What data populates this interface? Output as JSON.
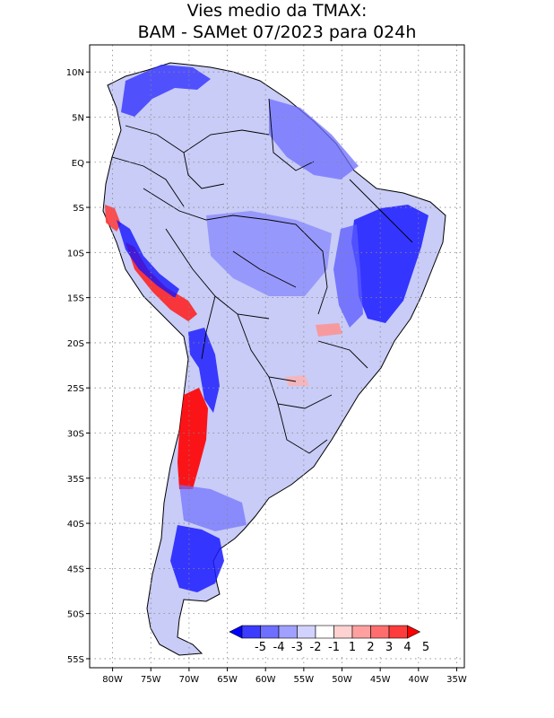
{
  "title": {
    "line1": "Vies medio da TMAX:",
    "line2": "BAM - SAMet 07/2023  para 024h"
  },
  "map": {
    "lon_min": -83,
    "lon_max": -34,
    "lat_min": -56,
    "lat_max": 13,
    "y_ticks": [
      "10N",
      "5N",
      "EQ",
      "5S",
      "10S",
      "15S",
      "20S",
      "25S",
      "30S",
      "35S",
      "40S",
      "45S",
      "50S",
      "55S"
    ],
    "y_tick_values": [
      10,
      5,
      0,
      -5,
      -10,
      -15,
      -20,
      -25,
      -30,
      -35,
      -40,
      -45,
      -50,
      -55
    ],
    "x_ticks": [
      "80W",
      "75W",
      "70W",
      "65W",
      "60W",
      "55W",
      "50W",
      "45W",
      "40W",
      "35W"
    ],
    "x_tick_values": [
      -80,
      -75,
      -70,
      -65,
      -60,
      -55,
      -50,
      -45,
      -40,
      -35
    ],
    "grid": "dotted",
    "field": "TMAX bias",
    "dominant_signal": "negative (blue) over most of the continent; positive (red) along the Andes of Peru, Bolivia and central Chile"
  },
  "colorbar": {
    "labels": [
      "-5",
      "-4",
      "-3",
      "-2",
      "-1",
      "1",
      "2",
      "3",
      "4",
      "5"
    ],
    "colors": [
      "#0000ff",
      "#3c3cff",
      "#6e6eff",
      "#a0a0ff",
      "#d2d2ff",
      "#ffffff",
      "#ffd2d2",
      "#ffa0a0",
      "#ff6e6e",
      "#ff3c3c",
      "#ff0000"
    ],
    "extend": "both"
  }
}
